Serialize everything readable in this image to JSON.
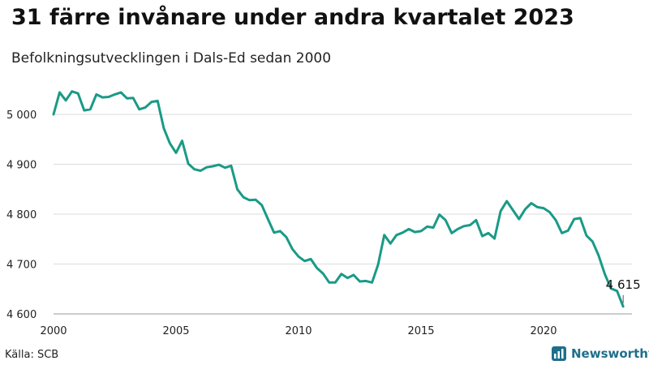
{
  "title": "31 färre invånare under andra kvartalet 2023",
  "subtitle": "Befolkningsutvecklingen i Dals-Ed sedan 2000",
  "source": "Källa: SCB",
  "brand": {
    "name": "Newsworthy",
    "icon": "newsworthy-logo-icon"
  },
  "colors": {
    "line": "#1a9a86",
    "grid": "#dddddd",
    "brand": "#1f6f8b"
  },
  "chart_data": {
    "type": "line",
    "title": "31 färre invånare under andra kvartalet 2023",
    "xlabel": "",
    "ylabel": "",
    "xlim": [
      2000,
      2023.5
    ],
    "ylim": [
      4600,
      5050
    ],
    "grid": true,
    "legend": "none",
    "y_ticks": [
      {
        "value": 4600,
        "label": "4 600"
      },
      {
        "value": 4700,
        "label": "4 700"
      },
      {
        "value": 4800,
        "label": "4 800"
      },
      {
        "value": 4900,
        "label": "4 900"
      },
      {
        "value": 5000,
        "label": "5 000"
      }
    ],
    "x_ticks": [
      {
        "value": 2000,
        "label": "2000"
      },
      {
        "value": 2005,
        "label": "2005"
      },
      {
        "value": 2010,
        "label": "2010"
      },
      {
        "value": 2015,
        "label": "2015"
      },
      {
        "value": 2020,
        "label": "2020"
      }
    ],
    "annotation": {
      "x": 2023.25,
      "value": 4615,
      "label": "4 615"
    },
    "series": [
      {
        "x": [
          2000,
          2000.25,
          2000.5,
          2000.75,
          2001,
          2001.25,
          2001.5,
          2001.75,
          2002,
          2002.25,
          2002.5,
          2002.75,
          2003,
          2003.25,
          2003.5,
          2003.75,
          2004,
          2004.25,
          2004.5,
          2004.75,
          2005,
          2005.25,
          2005.5,
          2005.75,
          2006,
          2006.25,
          2006.5,
          2006.75,
          2007,
          2007.25,
          2007.5,
          2007.75,
          2008,
          2008.25,
          2008.5,
          2008.75,
          2009,
          2009.25,
          2009.5,
          2009.75,
          2010,
          2010.25,
          2010.5,
          2010.75,
          2011,
          2011.25,
          2011.5,
          2011.75,
          2012,
          2012.25,
          2012.5,
          2012.75,
          2013,
          2013.25,
          2013.5,
          2013.75,
          2014,
          2014.25,
          2014.5,
          2014.75,
          2015,
          2015.25,
          2015.5,
          2015.75,
          2016,
          2016.25,
          2016.5,
          2016.75,
          2017,
          2017.25,
          2017.5,
          2017.75,
          2018,
          2018.25,
          2018.5,
          2018.75,
          2019,
          2019.25,
          2019.5,
          2019.75,
          2020,
          2020.25,
          2020.5,
          2020.75,
          2021,
          2021.25,
          2021.5,
          2021.75,
          2022,
          2022.25,
          2022.5,
          2022.75,
          2023,
          2023.25
        ],
        "values": [
          5000,
          5044,
          5028,
          5046,
          5042,
          5008,
          5010,
          5040,
          5034,
          5035,
          5040,
          5044,
          5032,
          5033,
          5010,
          5014,
          5025,
          5027,
          4972,
          4942,
          4923,
          4947,
          4901,
          4890,
          4887,
          4894,
          4896,
          4899,
          4893,
          4897,
          4850,
          4834,
          4828,
          4829,
          4818,
          4790,
          4763,
          4766,
          4754,
          4730,
          4715,
          4706,
          4710,
          4692,
          4681,
          4663,
          4663,
          4680,
          4672,
          4678,
          4665,
          4666,
          4663,
          4699,
          4758,
          4741,
          4758,
          4763,
          4770,
          4764,
          4766,
          4775,
          4773,
          4799,
          4788,
          4762,
          4770,
          4776,
          4778,
          4788,
          4756,
          4762,
          4751,
          4806,
          4826,
          4808,
          4790,
          4810,
          4822,
          4814,
          4812,
          4804,
          4788,
          4762,
          4767,
          4790,
          4792,
          4757,
          4745,
          4717,
          4680,
          4651,
          4646,
          4615
        ]
      }
    ]
  }
}
